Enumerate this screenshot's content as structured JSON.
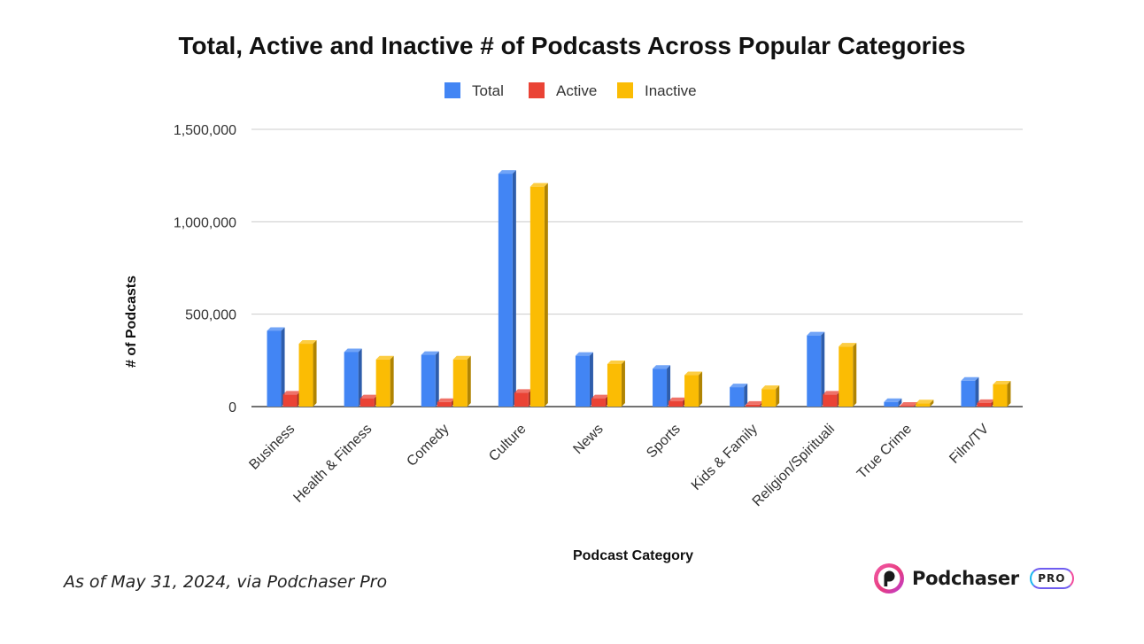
{
  "chart_data": {
    "type": "bar",
    "title": "Total, Active and Inactive # of Podcasts Across Popular Categories",
    "xlabel": "Podcast Category",
    "ylabel": "# of Podcasts",
    "categories": [
      "Business",
      "Health & Fitness",
      "Comedy",
      "Culture",
      "News",
      "Sports",
      "Kids & Family",
      "Religion/Spirituali",
      "True Crime",
      "Film/TV"
    ],
    "series": [
      {
        "name": "Total",
        "color": "#4285f4",
        "values": [
          410000,
          295000,
          280000,
          1260000,
          275000,
          205000,
          105000,
          385000,
          25000,
          140000
        ]
      },
      {
        "name": "Active",
        "color": "#ea4335",
        "values": [
          65000,
          45000,
          25000,
          75000,
          45000,
          30000,
          10000,
          65000,
          5000,
          20000
        ]
      },
      {
        "name": "Inactive",
        "color": "#fbbc04",
        "values": [
          340000,
          255000,
          255000,
          1190000,
          230000,
          170000,
          95000,
          325000,
          18000,
          120000
        ]
      }
    ],
    "ylim": [
      0,
      1500000
    ],
    "yticks": [
      0,
      500000,
      1000000,
      1500000
    ],
    "ytick_labels": [
      "0",
      "500,000",
      "1,000,000",
      "1,500,000"
    ],
    "legend_position": "top",
    "grid": true,
    "style": "3d-bar"
  },
  "footer": {
    "caption": "As of May 31, 2024, via Podchaser Pro",
    "brand_name": "Podchaser",
    "brand_badge": "PRO"
  }
}
